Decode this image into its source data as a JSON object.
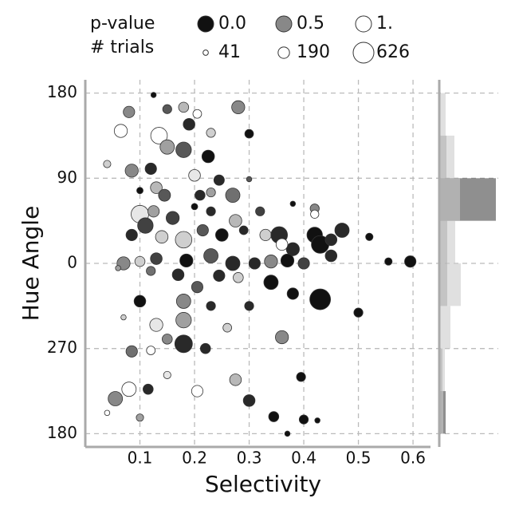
{
  "chart_data": [
    {
      "type": "scatter",
      "x_label": "Selectivity",
      "y_label": "Hue Angle",
      "xlim": [
        0,
        0.632
      ],
      "ylim": [
        -194,
        194
      ],
      "xticks": [
        0.1,
        0.2,
        0.3,
        0.4,
        0.5,
        0.6
      ],
      "yticks": [
        {
          "value": -180,
          "label": "180"
        },
        {
          "value": -90,
          "label": "270"
        },
        0,
        90,
        180
      ],
      "grid": true,
      "legend": {
        "color_title": "p-value",
        "color_values": [
          {
            "value": 0,
            "label": "0.0"
          },
          0.5,
          {
            "value": 1,
            "label": "1."
          }
        ],
        "size_title": "# trials",
        "size_values": [
          41,
          190,
          626
        ]
      },
      "x": [
        0.125,
        0.08,
        0.15,
        0.18,
        0.28,
        0.205,
        0.065,
        0.135,
        0.19,
        0.3,
        0.23,
        0.15,
        0.18,
        0.225,
        0.085,
        0.12,
        0.04,
        0.2,
        0.245,
        0.3,
        0.13,
        0.1,
        0.145,
        0.21,
        0.27,
        0.23,
        0.2,
        0.1,
        0.125,
        0.16,
        0.23,
        0.275,
        0.32,
        0.38,
        0.42,
        0.42,
        0.085,
        0.11,
        0.14,
        0.18,
        0.215,
        0.25,
        0.29,
        0.33,
        0.355,
        0.42,
        0.43,
        0.47,
        0.45,
        0.52,
        0.38,
        0.36,
        0.07,
        0.1,
        0.13,
        0.185,
        0.23,
        0.27,
        0.31,
        0.34,
        0.37,
        0.4,
        0.555,
        0.595,
        0.45,
        0.06,
        0.12,
        0.17,
        0.245,
        0.205,
        0.34,
        0.28,
        0.1,
        0.18,
        0.23,
        0.3,
        0.38,
        0.43,
        0.5,
        0.18,
        0.13,
        0.07,
        0.26,
        0.18,
        0.15,
        0.085,
        0.12,
        0.36,
        0.22,
        0.275,
        0.395,
        0.055,
        0.08,
        0.115,
        0.205,
        0.3,
        0.345,
        0.4,
        0.425,
        0.1,
        0.37,
        0.04,
        0.15
      ],
      "y": [
        178,
        160,
        163,
        165,
        165,
        158,
        140,
        135,
        147,
        137,
        138,
        123,
        120,
        113,
        98,
        100,
        105,
        93,
        88,
        89,
        80,
        77,
        72,
        72,
        72,
        75,
        60,
        52,
        55,
        48,
        55,
        45,
        55,
        63,
        58,
        52,
        30,
        40,
        28,
        25,
        35,
        30,
        35,
        30,
        30,
        30,
        20,
        35,
        25,
        28,
        15,
        20,
        0,
        2,
        5,
        3,
        8,
        0,
        0,
        2,
        3,
        0,
        2,
        2,
        8,
        -5,
        -8,
        -12,
        -13,
        -25,
        -20,
        -15,
        -40,
        -40,
        -45,
        -45,
        -32,
        -38,
        -52,
        -60,
        -65,
        -57,
        -68,
        -85,
        -80,
        -93,
        -92,
        -78,
        -90,
        -123,
        -120,
        -143,
        -133,
        -133,
        -135,
        -145,
        -162,
        -165,
        -166,
        -163,
        -180,
        -158,
        -118
      ],
      "p_value": [
        0,
        0.5,
        0.3,
        0.7,
        0.5,
        1,
        1,
        1,
        0.1,
        0,
        0.8,
        0.6,
        0.3,
        0,
        0.5,
        0.1,
        0.8,
        0.9,
        0.1,
        0.3,
        0.7,
        0,
        0.3,
        0.1,
        0.4,
        0.6,
        0,
        0.9,
        0.6,
        0.2,
        0.1,
        0.7,
        0.2,
        0,
        0.5,
        1,
        0.1,
        0.2,
        0.8,
        0.8,
        0.3,
        0,
        0.1,
        0.8,
        0.1,
        0,
        0,
        0.1,
        0.1,
        0,
        0.1,
        1,
        0.5,
        0.8,
        0.2,
        0,
        0.3,
        0.1,
        0.1,
        0.5,
        0,
        0.2,
        0,
        0,
        0.1,
        0.6,
        0.4,
        0.1,
        0.1,
        0.3,
        0,
        0.8,
        0,
        0.5,
        0.1,
        0.1,
        0,
        0,
        0,
        0.6,
        0.9,
        0.8,
        0.8,
        0.1,
        0.5,
        0.4,
        1,
        0.5,
        0.1,
        0.7,
        0,
        0.5,
        1,
        0.1,
        1,
        0.1,
        0,
        0,
        0,
        0.6,
        0,
        1,
        0.9
      ],
      "trials": [
        41,
        190,
        120,
        150,
        250,
        110,
        250,
        400,
        200,
        110,
        120,
        300,
        350,
        230,
        250,
        190,
        80,
        200,
        160,
        41,
        200,
        60,
        210,
        150,
        300,
        120,
        60,
        450,
        190,
        250,
        120,
        230,
        120,
        41,
        120,
        100,
        190,
        350,
        230,
        400,
        190,
        230,
        110,
        190,
        400,
        350,
        450,
        300,
        200,
        80,
        250,
        200,
        250,
        150,
        200,
        250,
        300,
        300,
        190,
        250,
        250,
        190,
        80,
        190,
        200,
        41,
        120,
        200,
        190,
        190,
        300,
        150,
        200,
        300,
        120,
        120,
        190,
        626,
        120,
        350,
        250,
        41,
        110,
        450,
        150,
        190,
        110,
        250,
        150,
        200,
        120,
        300,
        300,
        150,
        190,
        200,
        150,
        120,
        41,
        80,
        41,
        41,
        80
      ]
    },
    {
      "type": "histogram",
      "xlim": [
        0,
        75
      ],
      "bins": [
        -180,
        -135,
        -90,
        -45,
        0,
        45,
        90,
        135,
        180
      ],
      "series": [
        {
          "color": "#444444",
          "values": [
            8,
            0,
            0,
            0,
            0,
            71,
            0,
            0
          ]
        },
        {
          "color": "#888888",
          "values": [
            3,
            4,
            0,
            10,
            10,
            26,
            9,
            0
          ]
        },
        {
          "color": "#cccccc",
          "values": [
            5,
            7,
            14,
            27,
            20,
            26,
            19,
            8
          ]
        }
      ]
    }
  ]
}
